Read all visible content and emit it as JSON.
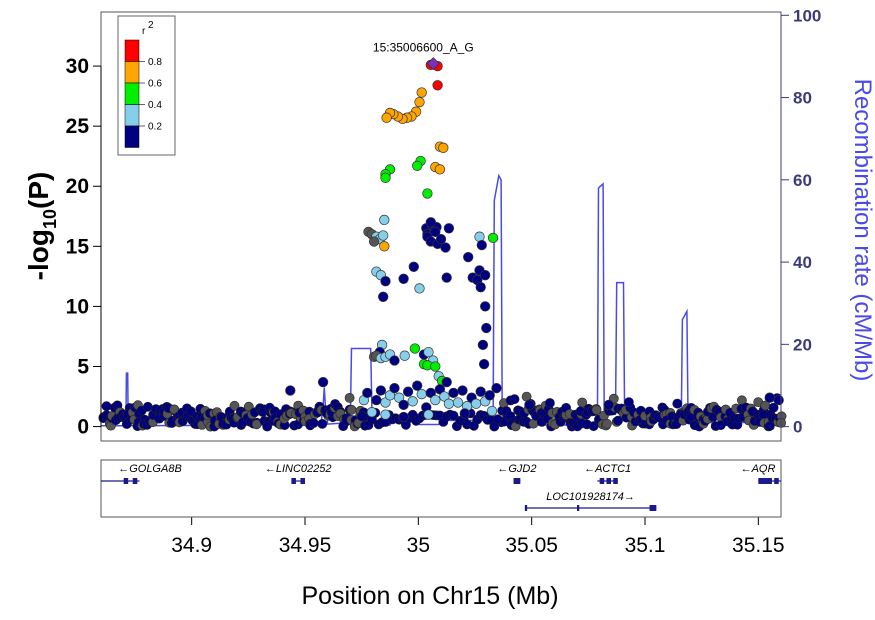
{
  "chart_data": {
    "type": "scatter",
    "title": "",
    "xlabel": "Position on Chr15 (Mb)",
    "ylabel_main": "-log",
    "ylabel_sub": "10",
    "ylabel_tail": "(P)",
    "y2label": "Recombination rate (cM/Mb)",
    "xlim": [
      34.86,
      35.16
    ],
    "ylim": [
      -1.2,
      34.5
    ],
    "y2lim": [
      -3.5,
      100.8
    ],
    "x_ticks": [
      34.9,
      34.95,
      35.0,
      35.05,
      35.1,
      35.15
    ],
    "x_tick_labels": [
      "34.9",
      "34.95",
      "35",
      "35.05",
      "35.1",
      "35.15"
    ],
    "y_ticks": [
      0,
      5,
      10,
      15,
      20,
      25,
      30
    ],
    "y_tick_labels": [
      "0",
      "5",
      "10",
      "15",
      "20",
      "25",
      "30"
    ],
    "y2_ticks": [
      0,
      20,
      40,
      60,
      80,
      100
    ],
    "y2_tick_labels": [
      "0",
      "20",
      "40",
      "60",
      "80",
      "100"
    ],
    "lead_snp": {
      "label": "15:35006600_A_G",
      "x": 35.0066,
      "y": 30.2,
      "color": "#7b2fbe"
    },
    "legend": {
      "title": "r",
      "title_sup": "2",
      "bins": [
        {
          "label": "0.8",
          "color": "#ff0000"
        },
        {
          "label": "0.6",
          "color": "#ffa500"
        },
        {
          "label": "0.4",
          "color": "#00ee00"
        },
        {
          "label": "0.2",
          "color": "#87ceeb"
        },
        {
          "label": "",
          "color": "#000080"
        }
      ]
    },
    "colors": {
      "red": "#ff0000",
      "orange": "#ffa500",
      "green": "#00ee00",
      "lightblue": "#87ceeb",
      "navy": "#000080",
      "grey": "#555555",
      "recomb": "#4a4ae8",
      "gene": "#1a1a8c"
    },
    "points": [
      {
        "x": 35.0055,
        "y": 30.1,
        "c": "red"
      },
      {
        "x": 35.0085,
        "y": 30.0,
        "c": "red"
      },
      {
        "x": 35.0085,
        "y": 28.4,
        "c": "red"
      },
      {
        "x": 35.0015,
        "y": 27.8,
        "c": "orange"
      },
      {
        "x": 35.0005,
        "y": 27.0,
        "c": "orange"
      },
      {
        "x": 34.999,
        "y": 26.2,
        "c": "orange"
      },
      {
        "x": 34.997,
        "y": 25.8,
        "c": "orange"
      },
      {
        "x": 34.995,
        "y": 25.7,
        "c": "orange"
      },
      {
        "x": 34.993,
        "y": 25.6,
        "c": "orange"
      },
      {
        "x": 34.991,
        "y": 25.8,
        "c": "orange"
      },
      {
        "x": 34.989,
        "y": 26.0,
        "c": "orange"
      },
      {
        "x": 34.9875,
        "y": 26.1,
        "c": "orange"
      },
      {
        "x": 34.986,
        "y": 25.7,
        "c": "orange"
      },
      {
        "x": 35.0095,
        "y": 23.3,
        "c": "orange"
      },
      {
        "x": 35.011,
        "y": 23.2,
        "c": "orange"
      },
      {
        "x": 35.0075,
        "y": 21.6,
        "c": "orange"
      },
      {
        "x": 35.0095,
        "y": 21.4,
        "c": "orange"
      },
      {
        "x": 35.001,
        "y": 22.1,
        "c": "green"
      },
      {
        "x": 34.9995,
        "y": 21.7,
        "c": "green"
      },
      {
        "x": 34.9875,
        "y": 21.4,
        "c": "green"
      },
      {
        "x": 34.9855,
        "y": 21.0,
        "c": "green"
      },
      {
        "x": 34.9855,
        "y": 20.7,
        "c": "green"
      },
      {
        "x": 35.004,
        "y": 19.4,
        "c": "green"
      },
      {
        "x": 34.985,
        "y": 17.2,
        "c": "lightblue"
      },
      {
        "x": 34.978,
        "y": 16.2,
        "c": "grey"
      },
      {
        "x": 34.9795,
        "y": 16.0,
        "c": "grey"
      },
      {
        "x": 34.9815,
        "y": 15.8,
        "c": "lightblue"
      },
      {
        "x": 34.983,
        "y": 15.6,
        "c": "lightblue"
      },
      {
        "x": 34.9805,
        "y": 15.4,
        "c": "grey"
      },
      {
        "x": 34.9845,
        "y": 15.9,
        "c": "lightblue"
      },
      {
        "x": 34.985,
        "y": 15.0,
        "c": "orange"
      },
      {
        "x": 35.0035,
        "y": 16.5,
        "c": "navy"
      },
      {
        "x": 35.004,
        "y": 16.0,
        "c": "navy"
      },
      {
        "x": 35.006,
        "y": 16.8,
        "c": "navy"
      },
      {
        "x": 35.008,
        "y": 16.6,
        "c": "navy"
      },
      {
        "x": 35.0075,
        "y": 16.2,
        "c": "navy"
      },
      {
        "x": 35.0055,
        "y": 17.0,
        "c": "navy"
      },
      {
        "x": 35.004,
        "y": 15.8,
        "c": "navy"
      },
      {
        "x": 35.0055,
        "y": 15.4,
        "c": "navy"
      },
      {
        "x": 35.0085,
        "y": 15.2,
        "c": "navy"
      },
      {
        "x": 35.01,
        "y": 15.6,
        "c": "navy"
      },
      {
        "x": 35.012,
        "y": 14.9,
        "c": "navy"
      },
      {
        "x": 35.0135,
        "y": 16.5,
        "c": "navy"
      },
      {
        "x": 35.027,
        "y": 15.8,
        "c": "lightblue"
      },
      {
        "x": 35.033,
        "y": 15.7,
        "c": "green"
      },
      {
        "x": 35.028,
        "y": 15.1,
        "c": "navy"
      },
      {
        "x": 35.022,
        "y": 14.1,
        "c": "navy"
      },
      {
        "x": 35.027,
        "y": 13.0,
        "c": "navy"
      },
      {
        "x": 35.024,
        "y": 12.4,
        "c": "navy"
      },
      {
        "x": 35.026,
        "y": 12.2,
        "c": "navy"
      },
      {
        "x": 35.0275,
        "y": 11.6,
        "c": "navy"
      },
      {
        "x": 35.0295,
        "y": 12.6,
        "c": "navy"
      },
      {
        "x": 34.9815,
        "y": 12.9,
        "c": "lightblue"
      },
      {
        "x": 34.9835,
        "y": 12.6,
        "c": "lightblue"
      },
      {
        "x": 34.9855,
        "y": 12.1,
        "c": "navy"
      },
      {
        "x": 34.9935,
        "y": 12.3,
        "c": "navy"
      },
      {
        "x": 34.998,
        "y": 13.3,
        "c": "navy"
      },
      {
        "x": 35.0005,
        "y": 11.5,
        "c": "lightblue"
      },
      {
        "x": 35.0125,
        "y": 12.4,
        "c": "navy"
      },
      {
        "x": 34.9845,
        "y": 10.8,
        "c": "navy"
      },
      {
        "x": 35.0295,
        "y": 10.0,
        "c": "navy"
      },
      {
        "x": 35.03,
        "y": 8.2,
        "c": "navy"
      },
      {
        "x": 35.0285,
        "y": 6.8,
        "c": "navy"
      },
      {
        "x": 35.029,
        "y": 5.2,
        "c": "navy"
      },
      {
        "x": 34.984,
        "y": 6.8,
        "c": "lightblue"
      },
      {
        "x": 34.983,
        "y": 6.2,
        "c": "navy"
      },
      {
        "x": 34.9805,
        "y": 5.8,
        "c": "grey"
      },
      {
        "x": 34.9815,
        "y": 5.9,
        "c": "grey"
      },
      {
        "x": 34.9835,
        "y": 5.7,
        "c": "lightblue"
      },
      {
        "x": 34.9855,
        "y": 5.8,
        "c": "lightblue"
      },
      {
        "x": 34.9875,
        "y": 6.0,
        "c": "lightblue"
      },
      {
        "x": 34.9895,
        "y": 5.5,
        "c": "navy"
      },
      {
        "x": 34.994,
        "y": 5.9,
        "c": "lightblue"
      },
      {
        "x": 34.9985,
        "y": 6.5,
        "c": "green"
      },
      {
        "x": 35.0025,
        "y": 6.0,
        "c": "navy"
      },
      {
        "x": 35.0045,
        "y": 6.2,
        "c": "lightblue"
      },
      {
        "x": 35.0065,
        "y": 5.5,
        "c": "lightblue"
      },
      {
        "x": 35.0025,
        "y": 5.2,
        "c": "green"
      },
      {
        "x": 35.004,
        "y": 5.1,
        "c": "green"
      },
      {
        "x": 35.0075,
        "y": 5.0,
        "c": "green"
      },
      {
        "x": 35.009,
        "y": 4.2,
        "c": "lightblue"
      },
      {
        "x": 35.0105,
        "y": 3.8,
        "c": "green"
      },
      {
        "x": 35.0125,
        "y": 3.7,
        "c": "navy"
      },
      {
        "x": 34.976,
        "y": 2.2,
        "c": "lightblue"
      },
      {
        "x": 34.9775,
        "y": 2.8,
        "c": "navy"
      },
      {
        "x": 34.9795,
        "y": 1.2,
        "c": "lightblue"
      },
      {
        "x": 34.9815,
        "y": 2.2,
        "c": "navy"
      },
      {
        "x": 34.9835,
        "y": 3.0,
        "c": "navy"
      },
      {
        "x": 34.9855,
        "y": 2.0,
        "c": "lightblue"
      },
      {
        "x": 34.9875,
        "y": 2.6,
        "c": "lightblue"
      },
      {
        "x": 34.9895,
        "y": 3.2,
        "c": "navy"
      },
      {
        "x": 34.9915,
        "y": 2.4,
        "c": "lightblue"
      },
      {
        "x": 34.9935,
        "y": 1.8,
        "c": "navy"
      },
      {
        "x": 34.9955,
        "y": 2.9,
        "c": "navy"
      },
      {
        "x": 34.9975,
        "y": 2.1,
        "c": "lightblue"
      },
      {
        "x": 34.9995,
        "y": 3.4,
        "c": "navy"
      },
      {
        "x": 35.0015,
        "y": 2.7,
        "c": "lightblue"
      },
      {
        "x": 35.0035,
        "y": 1.6,
        "c": "navy"
      },
      {
        "x": 35.0055,
        "y": 2.8,
        "c": "navy"
      },
      {
        "x": 35.0075,
        "y": 2.2,
        "c": "lightblue"
      },
      {
        "x": 35.0095,
        "y": 3.1,
        "c": "navy"
      },
      {
        "x": 35.0115,
        "y": 2.5,
        "c": "lightblue"
      },
      {
        "x": 35.0135,
        "y": 1.9,
        "c": "lightblue"
      },
      {
        "x": 35.0155,
        "y": 2.8,
        "c": "navy"
      },
      {
        "x": 35.0175,
        "y": 2.0,
        "c": "lightblue"
      },
      {
        "x": 35.0195,
        "y": 3.0,
        "c": "navy"
      },
      {
        "x": 35.0215,
        "y": 1.7,
        "c": "lightblue"
      },
      {
        "x": 35.0235,
        "y": 2.4,
        "c": "navy"
      },
      {
        "x": 35.0255,
        "y": 1.9,
        "c": "lightblue"
      },
      {
        "x": 35.0275,
        "y": 2.9,
        "c": "navy"
      },
      {
        "x": 35.0295,
        "y": 2.1,
        "c": "lightblue"
      },
      {
        "x": 35.0315,
        "y": 2.6,
        "c": "navy"
      },
      {
        "x": 35.0325,
        "y": 1.3,
        "c": "lightblue"
      },
      {
        "x": 35.0345,
        "y": 3.2,
        "c": "navy"
      },
      {
        "x": 34.9855,
        "y": 1.0,
        "c": "lightblue"
      },
      {
        "x": 34.9935,
        "y": 0.8,
        "c": "navy"
      },
      {
        "x": 35.0045,
        "y": 1.0,
        "c": "lightblue"
      },
      {
        "x": 35.0205,
        "y": 1.1,
        "c": "navy"
      },
      {
        "x": 34.9435,
        "y": 3.0,
        "c": "navy"
      },
      {
        "x": 34.958,
        "y": 3.7,
        "c": "navy"
      },
      {
        "x": 35.049,
        "y": 1.8,
        "c": "navy"
      },
      {
        "x": 35.084,
        "y": 1.8,
        "c": "navy"
      },
      {
        "x": 35.155,
        "y": 2.4,
        "c": "navy"
      },
      {
        "x": 35.159,
        "y": 2.2,
        "c": "navy"
      }
    ]
  },
  "genes": [
    {
      "name": "GOLGA8B",
      "label": "←GOLGA8B",
      "x1": 34.856,
      "x2": 34.877,
      "row": 0,
      "exons": [
        [
          34.87,
          34.872
        ],
        [
          34.874,
          34.876
        ]
      ]
    },
    {
      "name": "LINC02252",
      "label": "←LINC02252",
      "x1": 34.944,
      "x2": 34.95,
      "row": 0,
      "exons": [
        [
          34.944,
          34.946
        ],
        [
          34.948,
          34.95
        ]
      ]
    },
    {
      "name": "GJD2",
      "label": "←GJD2",
      "x1": 35.042,
      "x2": 35.045,
      "row": 0,
      "exons": [
        [
          35.042,
          35.045
        ]
      ]
    },
    {
      "name": "ACTC1",
      "label": "←ACTC1",
      "x1": 35.079,
      "x2": 35.088,
      "row": 0,
      "exons": [
        [
          35.08,
          35.082
        ],
        [
          35.083,
          35.085
        ],
        [
          35.086,
          35.088
        ]
      ]
    },
    {
      "name": "AQR",
      "label": "←AQR",
      "x1": 35.15,
      "x2": 35.162,
      "row": 0,
      "exons": [
        [
          35.15,
          35.156
        ],
        [
          35.157,
          35.159
        ]
      ]
    },
    {
      "name": "LOC101928174",
      "label": "LOC101928174→",
      "x1": 35.047,
      "x2": 35.105,
      "row": 1,
      "exons": [
        [
          35.047,
          35.048
        ],
        [
          35.07,
          35.071
        ],
        [
          35.102,
          35.105
        ]
      ]
    }
  ],
  "recombination": [
    [
      34.86,
      0.2
    ],
    [
      34.871,
      0.2
    ],
    [
      34.8712,
      13.0
    ],
    [
      34.8718,
      13.0
    ],
    [
      34.872,
      0.2
    ],
    [
      34.91,
      0.3
    ],
    [
      34.95,
      0.5
    ],
    [
      34.957,
      0.5
    ],
    [
      34.958,
      5.0
    ],
    [
      34.9585,
      9.5
    ],
    [
      34.959,
      5.0
    ],
    [
      34.96,
      0.6
    ],
    [
      34.97,
      1.0
    ],
    [
      34.9705,
      19.0
    ],
    [
      34.979,
      19.0
    ],
    [
      34.9795,
      4.0
    ],
    [
      34.9815,
      0.4
    ],
    [
      34.9875,
      0.4
    ],
    [
      34.9895,
      2.5
    ],
    [
      34.9985,
      2.5
    ],
    [
      35.0005,
      0.5
    ],
    [
      35.009,
      0.5
    ],
    [
      35.011,
      1.5
    ],
    [
      35.033,
      1.5
    ],
    [
      35.0335,
      55.0
    ],
    [
      35.0355,
      61.0
    ],
    [
      35.0365,
      60.0
    ],
    [
      35.037,
      3.0
    ],
    [
      35.038,
      0.4
    ],
    [
      35.079,
      0.4
    ],
    [
      35.0795,
      58.0
    ],
    [
      35.0815,
      59.0
    ],
    [
      35.082,
      3.0
    ],
    [
      35.087,
      3.0
    ],
    [
      35.0875,
      35.0
    ],
    [
      35.0905,
      35.0
    ],
    [
      35.091,
      3.0
    ],
    [
      35.1,
      2.0
    ],
    [
      35.116,
      2.0
    ],
    [
      35.1165,
      26.0
    ],
    [
      35.1185,
      28.0
    ],
    [
      35.119,
      1.0
    ],
    [
      35.161,
      1.0
    ]
  ]
}
